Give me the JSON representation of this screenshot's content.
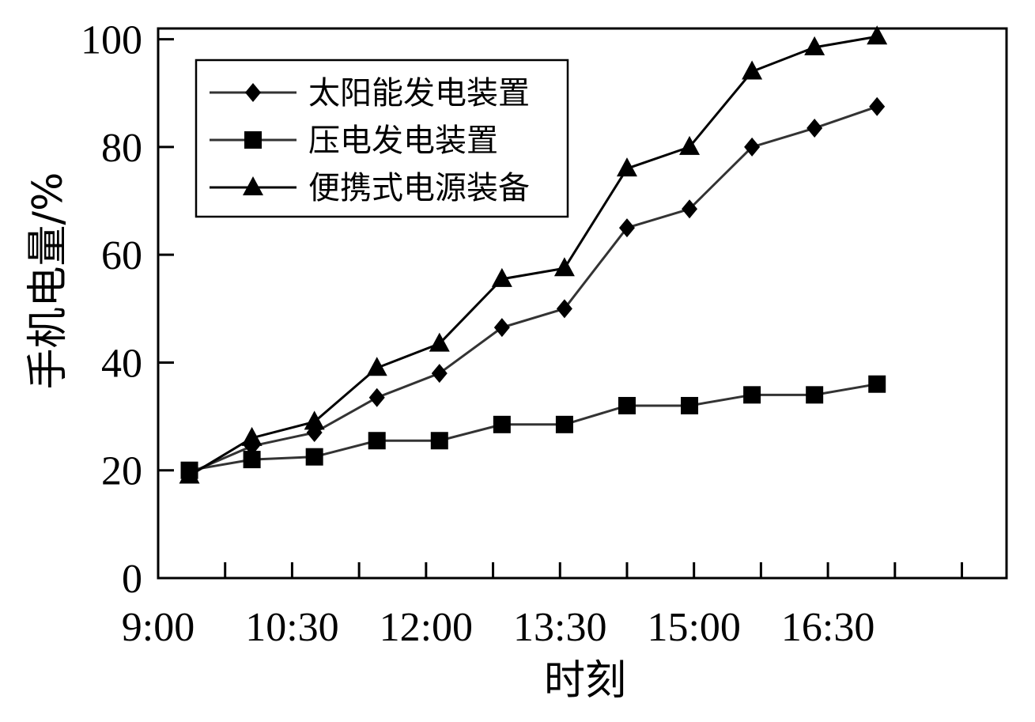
{
  "chart_data": {
    "type": "line",
    "xlabel": "时刻",
    "ylabel": "手机电量/%",
    "xlim": [
      540,
      1110
    ],
    "ylim": [
      0,
      102
    ],
    "x_ticks": [
      540,
      585,
      630,
      675,
      720,
      765,
      810,
      855,
      900,
      945,
      990,
      1035,
      1080
    ],
    "x_tick_labels": [
      {
        "value": 540,
        "label": "9:00"
      },
      {
        "value": 630,
        "label": "10:30"
      },
      {
        "value": 720,
        "label": "12:00"
      },
      {
        "value": 810,
        "label": "13:30"
      },
      {
        "value": 900,
        "label": "15:00"
      },
      {
        "value": 990,
        "label": "16:30"
      }
    ],
    "y_ticks": [
      0,
      20,
      40,
      60,
      80,
      100
    ],
    "y_tick_labels": [
      "0",
      "20",
      "40",
      "60",
      "80",
      "100"
    ],
    "legend_position": "top-left",
    "x": [
      561,
      603,
      645,
      687,
      729,
      771,
      813,
      855,
      897,
      939,
      981,
      1023
    ],
    "series": [
      {
        "name": "太阳能发电装置",
        "marker": "diamond",
        "color": "#000000",
        "line_color": "#333333",
        "values": [
          19.5,
          24.5,
          27.0,
          33.5,
          38.0,
          46.5,
          50.0,
          65.0,
          68.5,
          80.0,
          83.5,
          87.5
        ]
      },
      {
        "name": "压电发电装置",
        "marker": "square",
        "color": "#000000",
        "line_color": "#333333",
        "values": [
          20.0,
          22.0,
          22.5,
          25.5,
          25.5,
          28.5,
          28.5,
          32.0,
          32.0,
          34.0,
          34.0,
          36.0
        ]
      },
      {
        "name": "便携式电源装备",
        "marker": "triangle",
        "color": "#000000",
        "line_color": "#000000",
        "values": [
          19.0,
          26.0,
          29.0,
          39.0,
          43.5,
          55.5,
          57.5,
          76.0,
          80.0,
          94.0,
          98.5,
          100.5
        ]
      }
    ]
  }
}
